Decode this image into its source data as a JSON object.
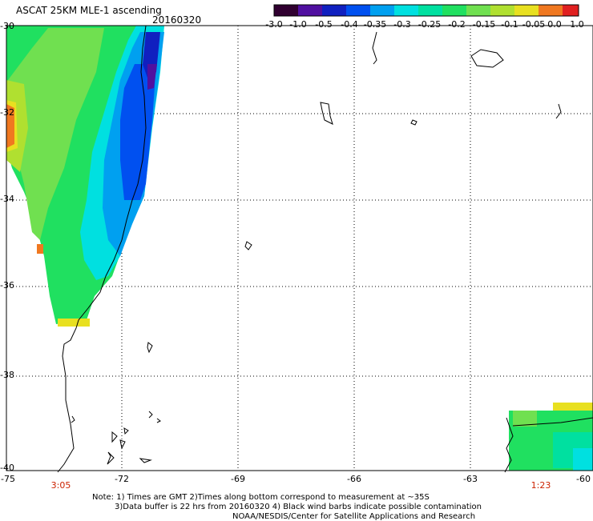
{
  "header": {
    "title": "ASCAT 25KM MLE-1 ascending",
    "date": "20160320"
  },
  "colorbar": {
    "labels": [
      "-3.0",
      "-1.0",
      "-0.5",
      "-0.4",
      "-0.35",
      "-0.3",
      "-0.25",
      "-0.2",
      "-0.15",
      "-0.1",
      "-0.05",
      "0.0",
      "1.0"
    ]
  },
  "axes": {
    "lat_labels": [
      "-30",
      "-32",
      "-34",
      "-36",
      "-38",
      "-40"
    ],
    "lon_labels": [
      "-75",
      "-72",
      "-69",
      "-66",
      "-63",
      "-60"
    ]
  },
  "pass_times": [
    "3:05",
    "1:23"
  ],
  "notes": {
    "line1": "Note: 1) Times are GMT 2)Times along bottom correspond to measurement at ~35S",
    "line2": "3)Data buffer is 22 hrs from 20160320 4) Black wind barbs indicate possible contamination",
    "line3": "NOAA/NESDIS/Center for Satellite Applications and Research"
  },
  "colors": {
    "orange": "#f07820",
    "yellow": "#e8e020",
    "yellow_green": "#b0e030",
    "light_green": "#70e050",
    "green": "#20e060",
    "green_cyan": "#00e0a0",
    "cyan": "#00e0e0",
    "sky": "#00a0f0",
    "blue": "#0050f0",
    "deep_blue": "#1020c0",
    "purple": "#5010a0",
    "red": "#e02020"
  }
}
